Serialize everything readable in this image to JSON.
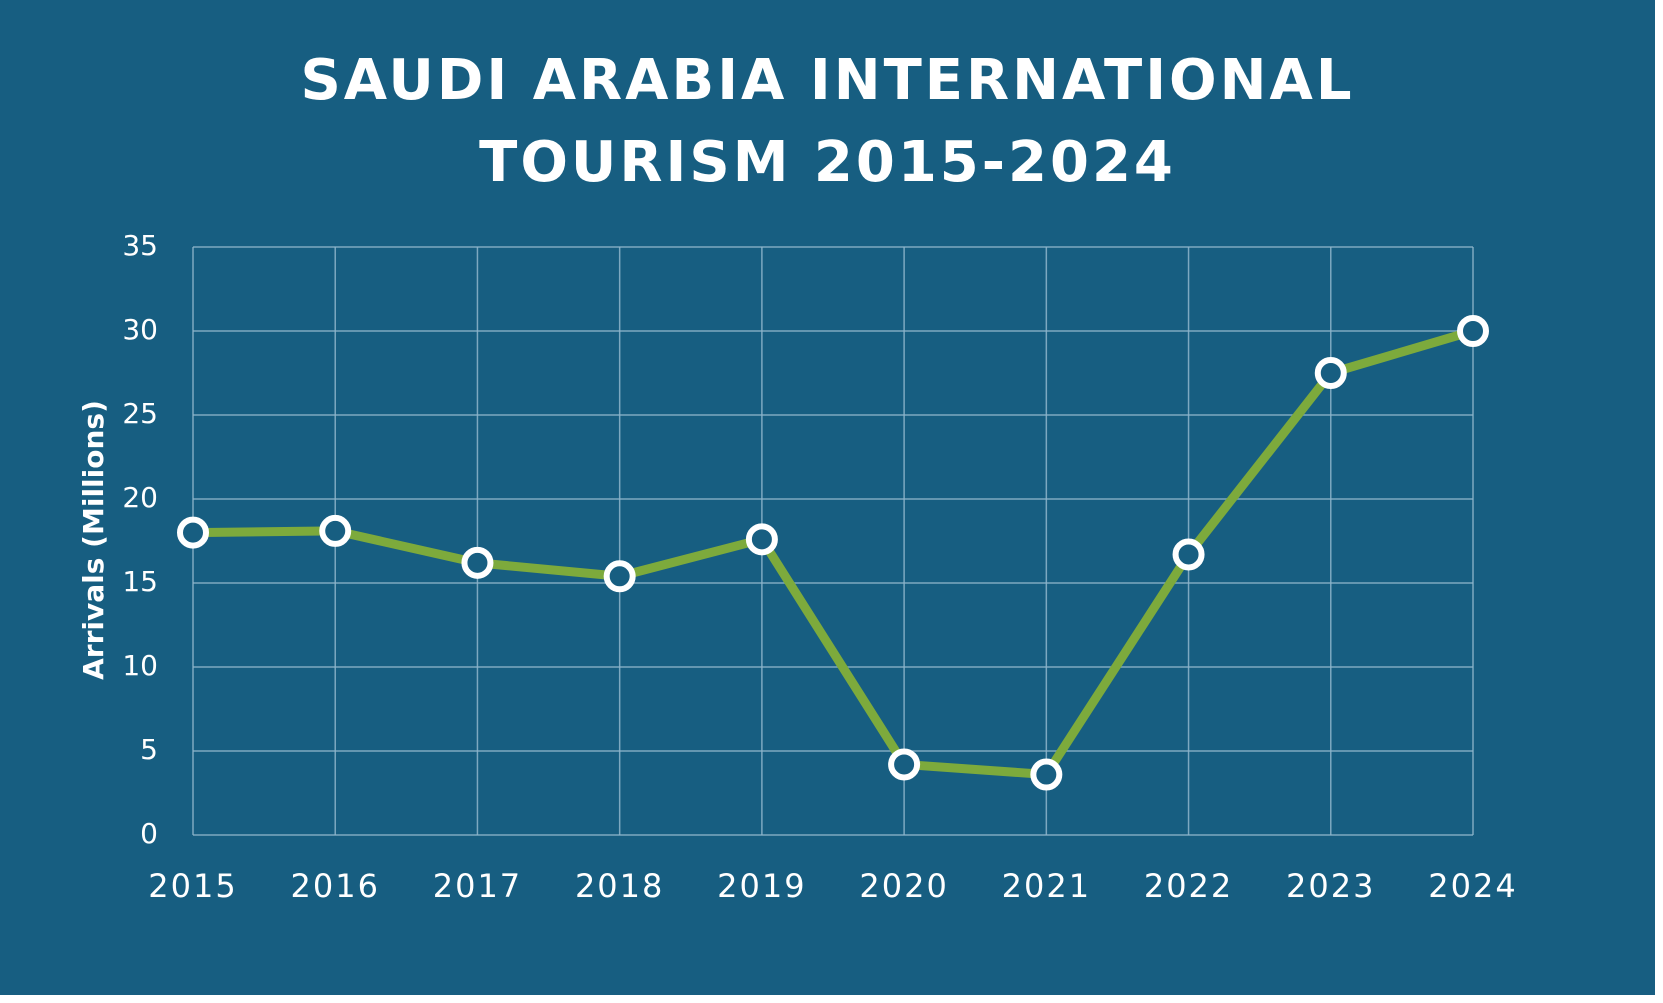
{
  "chart_data": {
    "type": "line",
    "title_lines": [
      "SAUDI ARABIA INTERNATIONAL",
      "TOURISM 2015-2024"
    ],
    "ylabel": "Arrivals (Millions)",
    "xlabel": "",
    "categories": [
      "2015",
      "2016",
      "2017",
      "2018",
      "2019",
      "2020",
      "2021",
      "2022",
      "2023",
      "2024"
    ],
    "values": [
      18.0,
      18.1,
      16.2,
      15.4,
      17.6,
      4.2,
      3.6,
      16.7,
      27.5,
      30.0
    ],
    "ylim": [
      0,
      35
    ],
    "yticks": [
      "0",
      "5",
      "10",
      "15",
      "20",
      "25",
      "30",
      "35"
    ],
    "grid": true,
    "colors": {
      "background": "#175e81",
      "line": "#7daa3c",
      "marker_fill": "#175e81",
      "marker_stroke": "#ffffff",
      "grid": "#8fb6cc",
      "text": "#ffffff"
    }
  }
}
